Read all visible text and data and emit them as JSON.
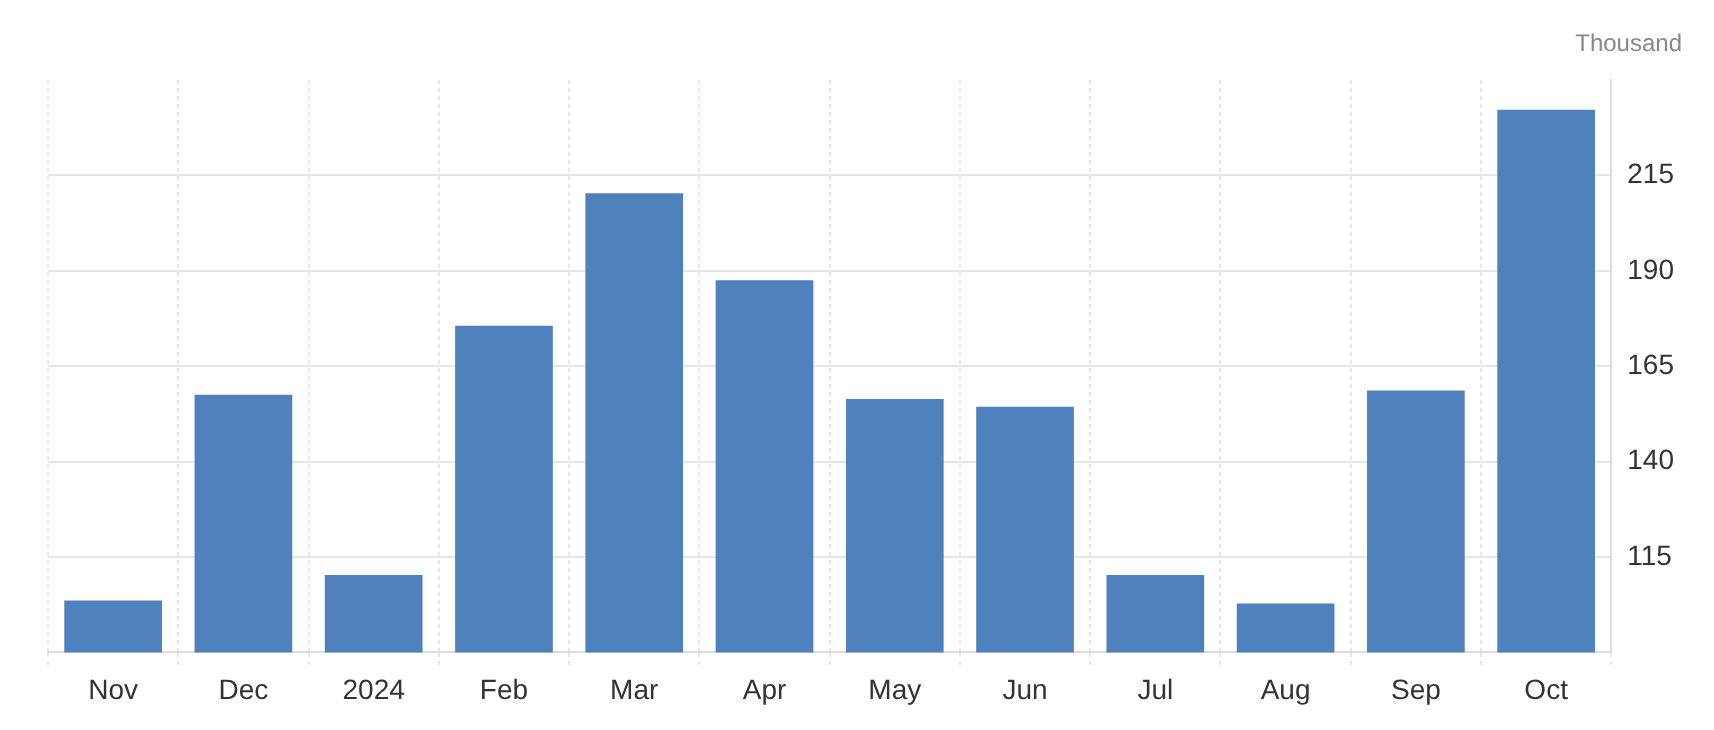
{
  "chart_data": {
    "type": "bar",
    "ylabel": "Thousand",
    "categories": [
      "Nov",
      "Dec",
      "2024",
      "Feb",
      "Mar",
      "Apr",
      "May",
      "Jun",
      "Jul",
      "Aug",
      "Sep",
      "Oct"
    ],
    "values": [
      103.6,
      157.5,
      110.3,
      175.6,
      210.3,
      187.5,
      156.4,
      154.4,
      110.3,
      102.8,
      158.6,
      232.2
    ],
    "color": "#4f81bd",
    "ylim": [
      90,
      240
    ],
    "yticks": [
      115,
      140,
      165,
      190,
      215
    ],
    "grid": true
  }
}
